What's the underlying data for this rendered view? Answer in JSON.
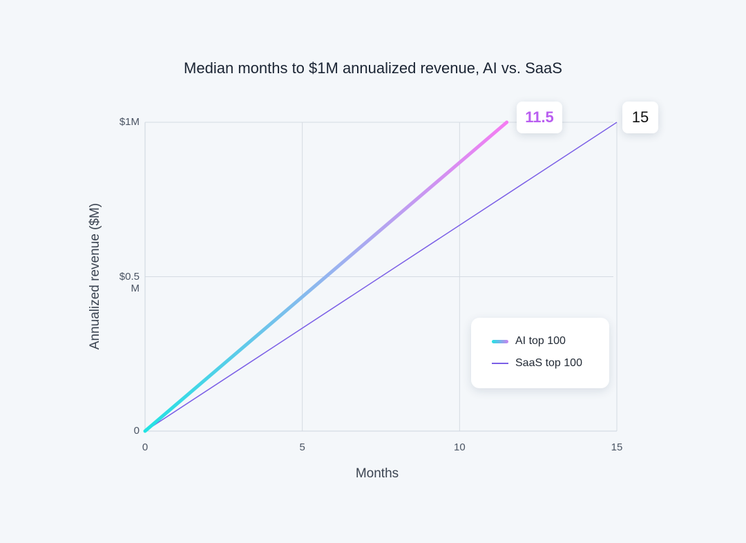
{
  "chart_data": {
    "type": "line",
    "title": "Median months to $1M annualized revenue, AI vs. SaaS",
    "xlabel": "Months",
    "ylabel": "Annualized revenue ($M)",
    "xlim": [
      0,
      15
    ],
    "ylim": [
      0,
      1
    ],
    "xticks": [
      {
        "value": 0,
        "label": "0"
      },
      {
        "value": 5,
        "label": "5"
      },
      {
        "value": 10,
        "label": "10"
      },
      {
        "value": 15,
        "label": "15"
      }
    ],
    "yticks": [
      {
        "value": 0,
        "label": "0"
      },
      {
        "value": 0.5,
        "label": "$0.5\nM"
      },
      {
        "value": 1,
        "label": "$1M"
      }
    ],
    "grid": true,
    "legend_position": "bottom-right",
    "series": [
      {
        "name": "AI top 100",
        "x": [
          0,
          11.5
        ],
        "y": [
          0,
          1
        ],
        "end_label": "11.5",
        "color_start": "#22e3e3",
        "color_mid": "#9fb0f0",
        "color_end": "#f57cf2"
      },
      {
        "name": "SaaS top 100",
        "x": [
          0,
          15
        ],
        "y": [
          0,
          1
        ],
        "end_label": "15",
        "color": "#7b5fe6"
      }
    ]
  }
}
